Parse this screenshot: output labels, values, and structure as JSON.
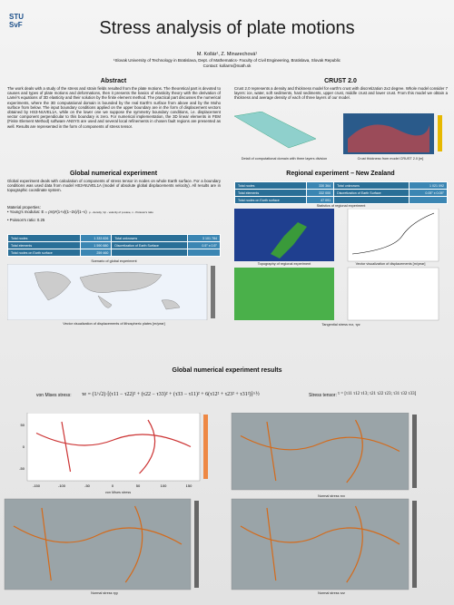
{
  "header": {
    "logo": [
      "STU",
      "SvF"
    ],
    "title": "Stress analysis of plate motions",
    "authors": "M. Kollár¹, Z. Minarechová¹",
    "affiliation": "¹Slovak University of Technology in Bratislava, Dept. of Mathematics- Faculty of Civil Engineering, Bratislava, Slovak Republic",
    "contact": "Contact: kollarm@math.sk"
  },
  "abstract": {
    "heading": "Abstract",
    "text": "The work deals with a study of the stress and strain fields resulted from the plate motions. The theoretical part is devoted to causes and types of plate motions and deformations, then it presents the basics of elasticity theory with the derivation of Lamé's equations of 3D elasticity and their solution by the finite element method. The practical part discusses the numerical experiments, where the 3D computational domain is bounded by the real Earth's surface from above and by the Moho surface from below. The input boundary conditions applied on the upper boundary are in the form of displacement vectors obtained by HS3-NUVEL1A, while on the lower one we suppose the symmetry boundary conditions, i.e. displacement vector component perpendicular to this boundary is zero. For numerical implementation, the 3D linear elements in FEM (Finite Element Method) software ANSYS are used and several local refinements in chosen fault regions are presented as well. Results are represented in the form of components of stress tensor."
  },
  "crust": {
    "heading": "CRUST 2.0",
    "text": "Crust 2.0 represents a density and thickness model for earth's crust with discretization 2x2 degree. Whole model consider 7 layers: ice, water, soft sediments, hard sediments, upper crust, middle crust and lower crust. From this model we obtain a thickness and average density of each of three layers of our model.",
    "captions": [
      "Detail of computational domain with three layers division",
      "Crust thickness from model CRUST 2.0 [m]"
    ]
  },
  "global": {
    "heading": "Global numerical experiment",
    "text": "Global experiment deals with calculation of components of stress tensor in nodes on whole Earth surface. For a boundary conditions was used data from model HS3-NUVEL1A (model of absolute global displacements velocity). All results are in topographic coordinate system.",
    "material": "Material properties:",
    "young": "Young's modulus: E = ρVp²(1+ν)(1−2ν)/(1−ν)",
    "young_note": "ρ - density, Vp - velocity of p-wave, ν - Poisson's ratio",
    "poisson": "Poisson's ratio: 0.25",
    "table": {
      "rows": [
        [
          "Total nodes",
          "1 333 826",
          "Total unknowns",
          "3 101 784"
        ],
        [
          "Total elements",
          "1 590 880",
          "Discretization of Earth Surface",
          "0.5° x 0.5°"
        ],
        [
          "Total nodes on Earth surface",
          "259 460",
          "",
          ""
        ]
      ]
    },
    "captions": [
      "Scenario of global experiment",
      "Vector visualization of displacements of lithospheric plates [m/year]"
    ]
  },
  "regional": {
    "heading": "Regional experiment – New Zealand",
    "table": {
      "rows": [
        [
          "Total nodes",
          "330 364",
          "Total unknowns",
          "1 021 092"
        ],
        [
          "Total elements",
          "332 000",
          "Discretization of Earth Surface",
          "0.05° x 0.05°"
        ],
        [
          "Total nodes on Earth surface",
          "47 091",
          "",
          ""
        ]
      ]
    },
    "captions": [
      "Statistics of regional experiment",
      "Topography of regional experiment",
      "Vector visualization of displacements [m/year]",
      "Tangential stress τxz, τyz"
    ]
  },
  "results": {
    "heading": "Global numerical experiment results",
    "mises_label": "von Mises stress:",
    "mises_formula": "τe = (1/√2)·[(τ11 − τ22)² + (τ22 − τ33)² + (τ33 − τ11)² + 6(τ12² + τ23² + τ31²)]^½",
    "tensor_label": "Stress tensor:",
    "tensor_formula": "τ = [τ11 τ12 τ13; τ21 τ22 τ23; τ31 τ32 τ33]",
    "xticks": [
      "-150",
      "-100",
      "-50",
      "0",
      "50",
      "100",
      "150"
    ],
    "yticks": [
      "50",
      "0",
      "-50"
    ],
    "captions": [
      "von Mises stress",
      "Normal stress τxx",
      "Normal stress τyy",
      "Normal stress τzz"
    ]
  }
}
